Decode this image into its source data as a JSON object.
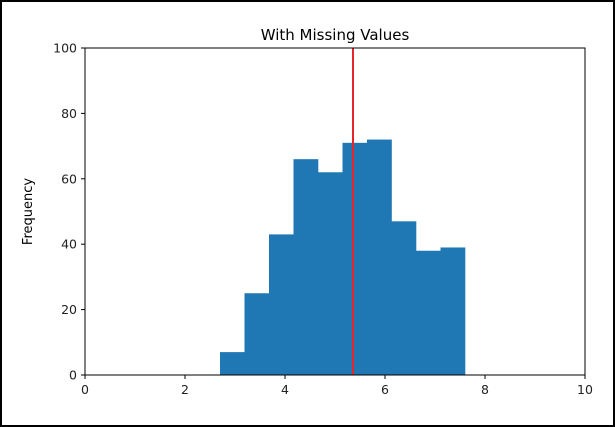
{
  "colors": {
    "bar": "#1f77b4",
    "mean_line": "#e8262a",
    "axis": "#000000",
    "background": "#ffffff"
  },
  "chart_data": {
    "type": "bar",
    "title": "With Missing Values",
    "xlabel": "",
    "ylabel": "Frequency",
    "xlim": [
      0,
      10
    ],
    "ylim": [
      0,
      100
    ],
    "xticks": [
      0,
      2,
      4,
      6,
      8,
      10
    ],
    "yticks": [
      0,
      20,
      40,
      60,
      80,
      100
    ],
    "grid": false,
    "bins": [
      {
        "start": 2.7,
        "end": 3.19,
        "count": 7
      },
      {
        "start": 3.19,
        "end": 3.68,
        "count": 25
      },
      {
        "start": 3.68,
        "end": 4.17,
        "count": 43
      },
      {
        "start": 4.17,
        "end": 4.66,
        "count": 66
      },
      {
        "start": 4.66,
        "end": 5.15,
        "count": 62
      },
      {
        "start": 5.15,
        "end": 5.64,
        "count": 71
      },
      {
        "start": 5.64,
        "end": 6.13,
        "count": 72
      },
      {
        "start": 6.13,
        "end": 6.62,
        "count": 47
      },
      {
        "start": 6.62,
        "end": 7.11,
        "count": 38
      },
      {
        "start": 7.11,
        "end": 7.6,
        "count": 39
      }
    ],
    "vertical_line": {
      "x": 5.36
    }
  }
}
